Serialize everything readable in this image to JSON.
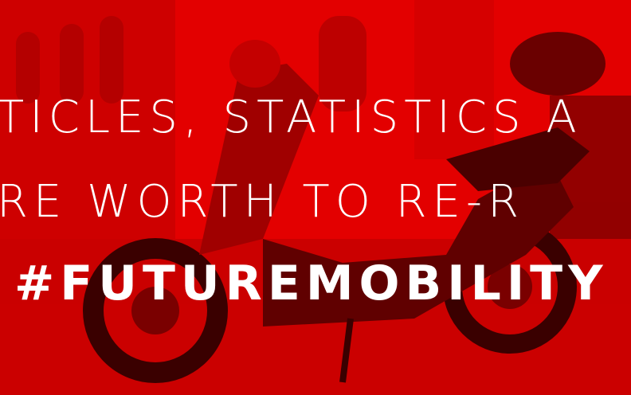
{
  "banner": {
    "lines": [
      "TICLES, STATISTICS A",
      "RE WORTH TO RE-R",
      "#FUTUREMOBILITY"
    ]
  }
}
